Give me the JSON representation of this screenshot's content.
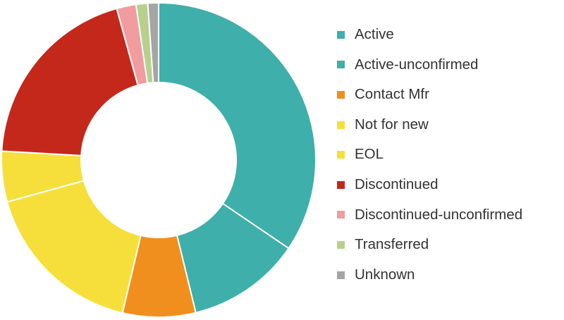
{
  "chart_data": {
    "type": "pie",
    "donut": true,
    "title": "",
    "legend_position": "right",
    "categories": [
      "Active",
      "Active-unconfirmed",
      "Contact Mfr",
      "Not for new",
      "EOL",
      "Discontinued",
      "Discontinued-unconfirmed",
      "Transferred",
      "Unknown"
    ],
    "values": [
      34.5,
      11.7,
      7.5,
      17.0,
      5.2,
      19.8,
      2.0,
      1.2,
      1.1
    ],
    "colors": [
      "#3EAFAA",
      "#3EAFAA",
      "#F18F1E",
      "#F6DF3A",
      "#F6DF3A",
      "#C4281B",
      "#F19C9E",
      "#B7D08D",
      "#A5A5A5"
    ]
  }
}
